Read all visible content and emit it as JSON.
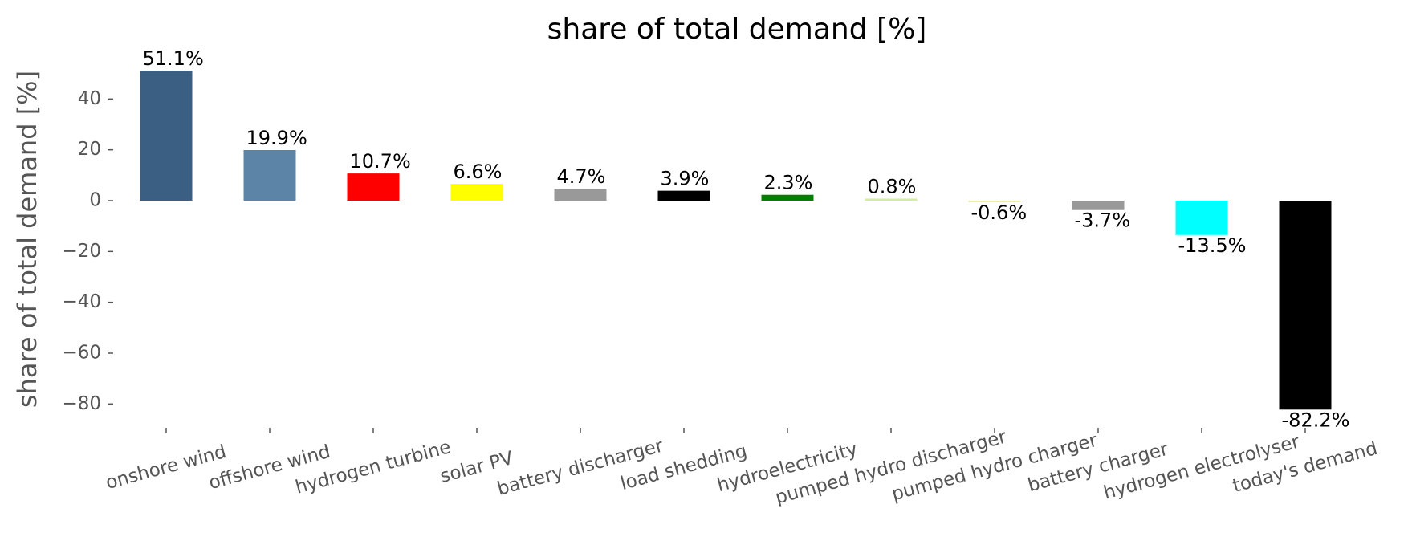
{
  "chart_data": {
    "type": "bar",
    "title": "share of total demand [%]",
    "y_label": "share of total demand [%]",
    "categories": [
      "onshore wind",
      "offshore wind",
      "hydrogen turbine",
      "solar PV",
      "battery discharger",
      "load shedding",
      "hydroelectricity",
      "pumped hydro discharger",
      "pumped hydro charger",
      "battery charger",
      "hydrogen electrolyser",
      "today's demand"
    ],
    "values": [
      51.1,
      19.9,
      10.7,
      6.6,
      4.7,
      3.9,
      2.3,
      0.8,
      -0.6,
      -3.7,
      -13.5,
      -82.2
    ],
    "value_labels": [
      "51.1%",
      "19.9%",
      "10.7%",
      "6.6%",
      "4.7%",
      "3.9%",
      "2.3%",
      "0.8%",
      "-0.6%",
      "-3.7%",
      "-13.5%",
      "-82.2%"
    ],
    "colors": [
      "#3a5f82",
      "#5b84a7",
      "#ff0000",
      "#ffff00",
      "#999999",
      "#000000",
      "#008000",
      "#d4ec9e",
      "#e8eca0",
      "#999999",
      "#00ffff",
      "#000000"
    ],
    "ylim": [
      -90,
      60
    ],
    "yticks": [
      {
        "value": -80,
        "label": "−80"
      },
      {
        "value": -60,
        "label": "−60"
      },
      {
        "value": -40,
        "label": "−40"
      },
      {
        "value": -20,
        "label": "−20"
      },
      0,
      20,
      40
    ],
    "grid": false
  }
}
